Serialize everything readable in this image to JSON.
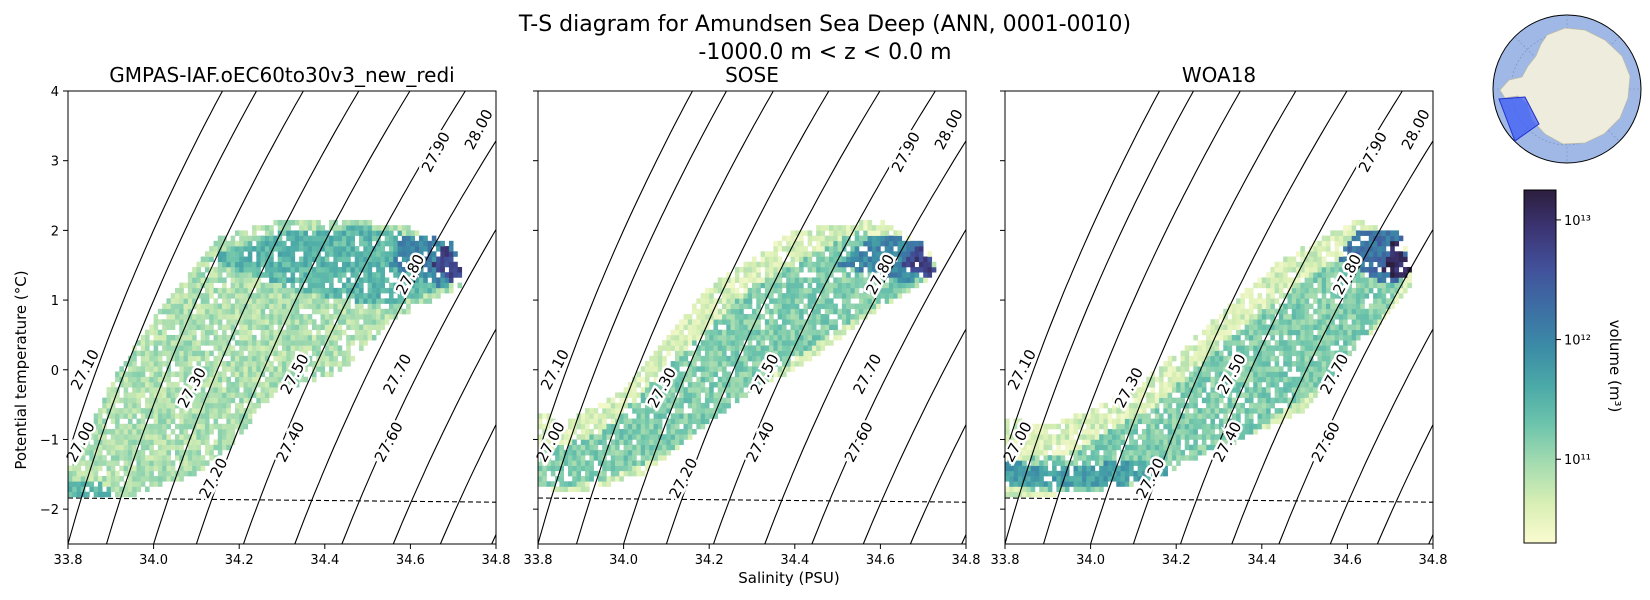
{
  "chart_data": {
    "type": "heatmap",
    "title_line1": "T-S diagram for Amundsen Sea Deep (ANN, 0001-0010)",
    "title_line2": "-1000.0 m < z < 0.0 m",
    "xlabel": "Salinity (PSU)",
    "ylabel": "Potential temperature (°C)",
    "xlim": [
      33.8,
      34.8
    ],
    "ylim": [
      -2.5,
      4
    ],
    "xticks": [
      "33.8",
      "34.0",
      "34.2",
      "34.4",
      "34.6",
      "34.8"
    ],
    "yticks": [
      "4",
      "3",
      "2",
      "1",
      "0",
      "−1",
      "−2"
    ],
    "density_contours": [
      "27.00",
      "27.10",
      "27.20",
      "27.30",
      "27.40",
      "27.50",
      "27.60",
      "27.70",
      "27.80",
      "27.90",
      "28.00"
    ],
    "freezing_line": {
      "s": [
        33.8,
        34.8
      ],
      "t": [
        -1.84,
        -1.9
      ]
    },
    "colorbar": {
      "label": "volume (m³)",
      "scale": "log",
      "ticks": [
        "10¹¹",
        "10¹²",
        "10¹³"
      ],
      "range_exponent": [
        10.3,
        13.25
      ],
      "colors": [
        "#fbfbd0",
        "#d8efb4",
        "#a6dcb0",
        "#6ec5ac",
        "#4ba9a7",
        "#3b8ba6",
        "#3d6ea4",
        "#42519a",
        "#3c3574",
        "#2c1e3e"
      ]
    },
    "panels": [
      {
        "name": "GMPAS-IAF.oEC60to30v3_new_redi",
        "show_ylabels": true,
        "show_xlabel": false,
        "regions": [
          {
            "s": [
              33.8,
              33.95,
              34.1,
              34.2,
              34.25,
              34.3,
              34.45,
              34.55,
              34.65,
              34.72,
              34.71,
              34.6,
              34.45,
              34.3,
              34.15,
              34.03,
              33.92,
              33.85,
              33.8
            ],
            "t": [
              -1.8,
              -1.8,
              -1.5,
              -1.0,
              -0.5,
              -0.3,
              0.0,
              0.7,
              1.0,
              1.2,
              1.5,
              2.05,
              2.15,
              2.15,
              1.9,
              1.0,
              0.0,
              -0.8,
              -1.4
            ],
            "level": 1
          },
          {
            "s": [
              34.12,
              34.35,
              34.55,
              34.67,
              34.72,
              34.68,
              34.5,
              34.3
            ],
            "t": [
              1.6,
              1.1,
              0.9,
              1.15,
              1.3,
              1.85,
              2.05,
              2.0
            ],
            "level": 3
          },
          {
            "s": [
              34.55,
              34.66,
              34.72,
              34.7,
              34.58
            ],
            "t": [
              1.5,
              1.2,
              1.3,
              1.85,
              1.95
            ],
            "level": 5
          },
          {
            "s": [
              34.65,
              34.7,
              34.72,
              34.68
            ],
            "t": [
              1.5,
              1.25,
              1.4,
              1.85
            ],
            "level": 8
          },
          {
            "s": [
              33.8,
              33.9,
              33.9,
              33.8
            ],
            "t": [
              -1.8,
              -1.8,
              -1.65,
              -1.6
            ],
            "level": 3
          }
        ]
      },
      {
        "name": "SOSE",
        "show_ylabels": false,
        "show_xlabel": true,
        "regions": [
          {
            "s": [
              33.8,
              33.9,
              34.05,
              34.25,
              34.45,
              34.6,
              34.7,
              34.73,
              34.72,
              34.6,
              34.4,
              34.2,
              34.0,
              33.85,
              33.8
            ],
            "t": [
              -1.7,
              -1.75,
              -1.5,
              -0.5,
              0.2,
              0.9,
              1.25,
              1.4,
              1.7,
              2.15,
              2.0,
              1.2,
              -0.3,
              -0.8,
              -0.5
            ],
            "level": 0
          },
          {
            "s": [
              33.8,
              33.95,
              34.1,
              34.3,
              34.5,
              34.62,
              34.72,
              34.7,
              34.55,
              34.3,
              34.1,
              33.95,
              33.8
            ],
            "t": [
              -1.7,
              -1.6,
              -1.2,
              -0.3,
              0.6,
              1.0,
              1.35,
              1.75,
              2.0,
              1.2,
              0.0,
              -0.9,
              -1.2
            ],
            "level": 2
          },
          {
            "s": [
              34.5,
              34.66,
              34.73,
              34.7,
              34.58
            ],
            "t": [
              1.5,
              1.25,
              1.4,
              1.85,
              1.95
            ],
            "level": 5
          },
          {
            "s": [
              34.65,
              34.71,
              34.73,
              34.69
            ],
            "t": [
              1.5,
              1.3,
              1.45,
              1.85
            ],
            "level": 8
          }
        ]
      },
      {
        "name": "WOA18",
        "show_ylabels": false,
        "show_xlabel": false,
        "regions": [
          {
            "s": [
              33.8,
              33.9,
              34.1,
              34.3,
              34.5,
              34.65,
              34.75,
              34.73,
              34.62,
              34.45,
              34.3,
              34.1,
              33.9,
              33.8
            ],
            "t": [
              -1.8,
              -1.8,
              -1.65,
              -1.1,
              -0.6,
              0.5,
              1.25,
              1.9,
              2.15,
              1.6,
              0.8,
              -0.3,
              -0.8,
              -0.7
            ],
            "level": 0
          },
          {
            "s": [
              33.8,
              34.0,
              34.15,
              34.35,
              34.55,
              34.7,
              34.74,
              34.7,
              34.55,
              34.35,
              34.15,
              33.95,
              33.8
            ],
            "t": [
              -1.7,
              -1.75,
              -1.55,
              -1.0,
              -0.2,
              0.9,
              1.4,
              1.75,
              1.5,
              0.6,
              -0.5,
              -1.2,
              -1.3
            ],
            "level": 2
          },
          {
            "s": [
              33.8,
              34.05,
              34.2,
              34.1,
              33.9,
              33.8
            ],
            "t": [
              -1.65,
              -1.7,
              -1.45,
              -1.3,
              -1.4,
              -1.3
            ],
            "level": 4
          },
          {
            "s": [
              34.58,
              34.7,
              34.75,
              34.72,
              34.62
            ],
            "t": [
              1.6,
              1.2,
              1.4,
              2.0,
              2.0
            ],
            "level": 6
          },
          {
            "s": [
              34.68,
              34.74,
              34.75,
              34.71
            ],
            "t": [
              1.4,
              1.3,
              1.5,
              1.9
            ],
            "level": 9
          }
        ]
      }
    ],
    "inset_map": {
      "region": "Amundsen Sea",
      "highlight_color": "#3d5cf5"
    }
  }
}
